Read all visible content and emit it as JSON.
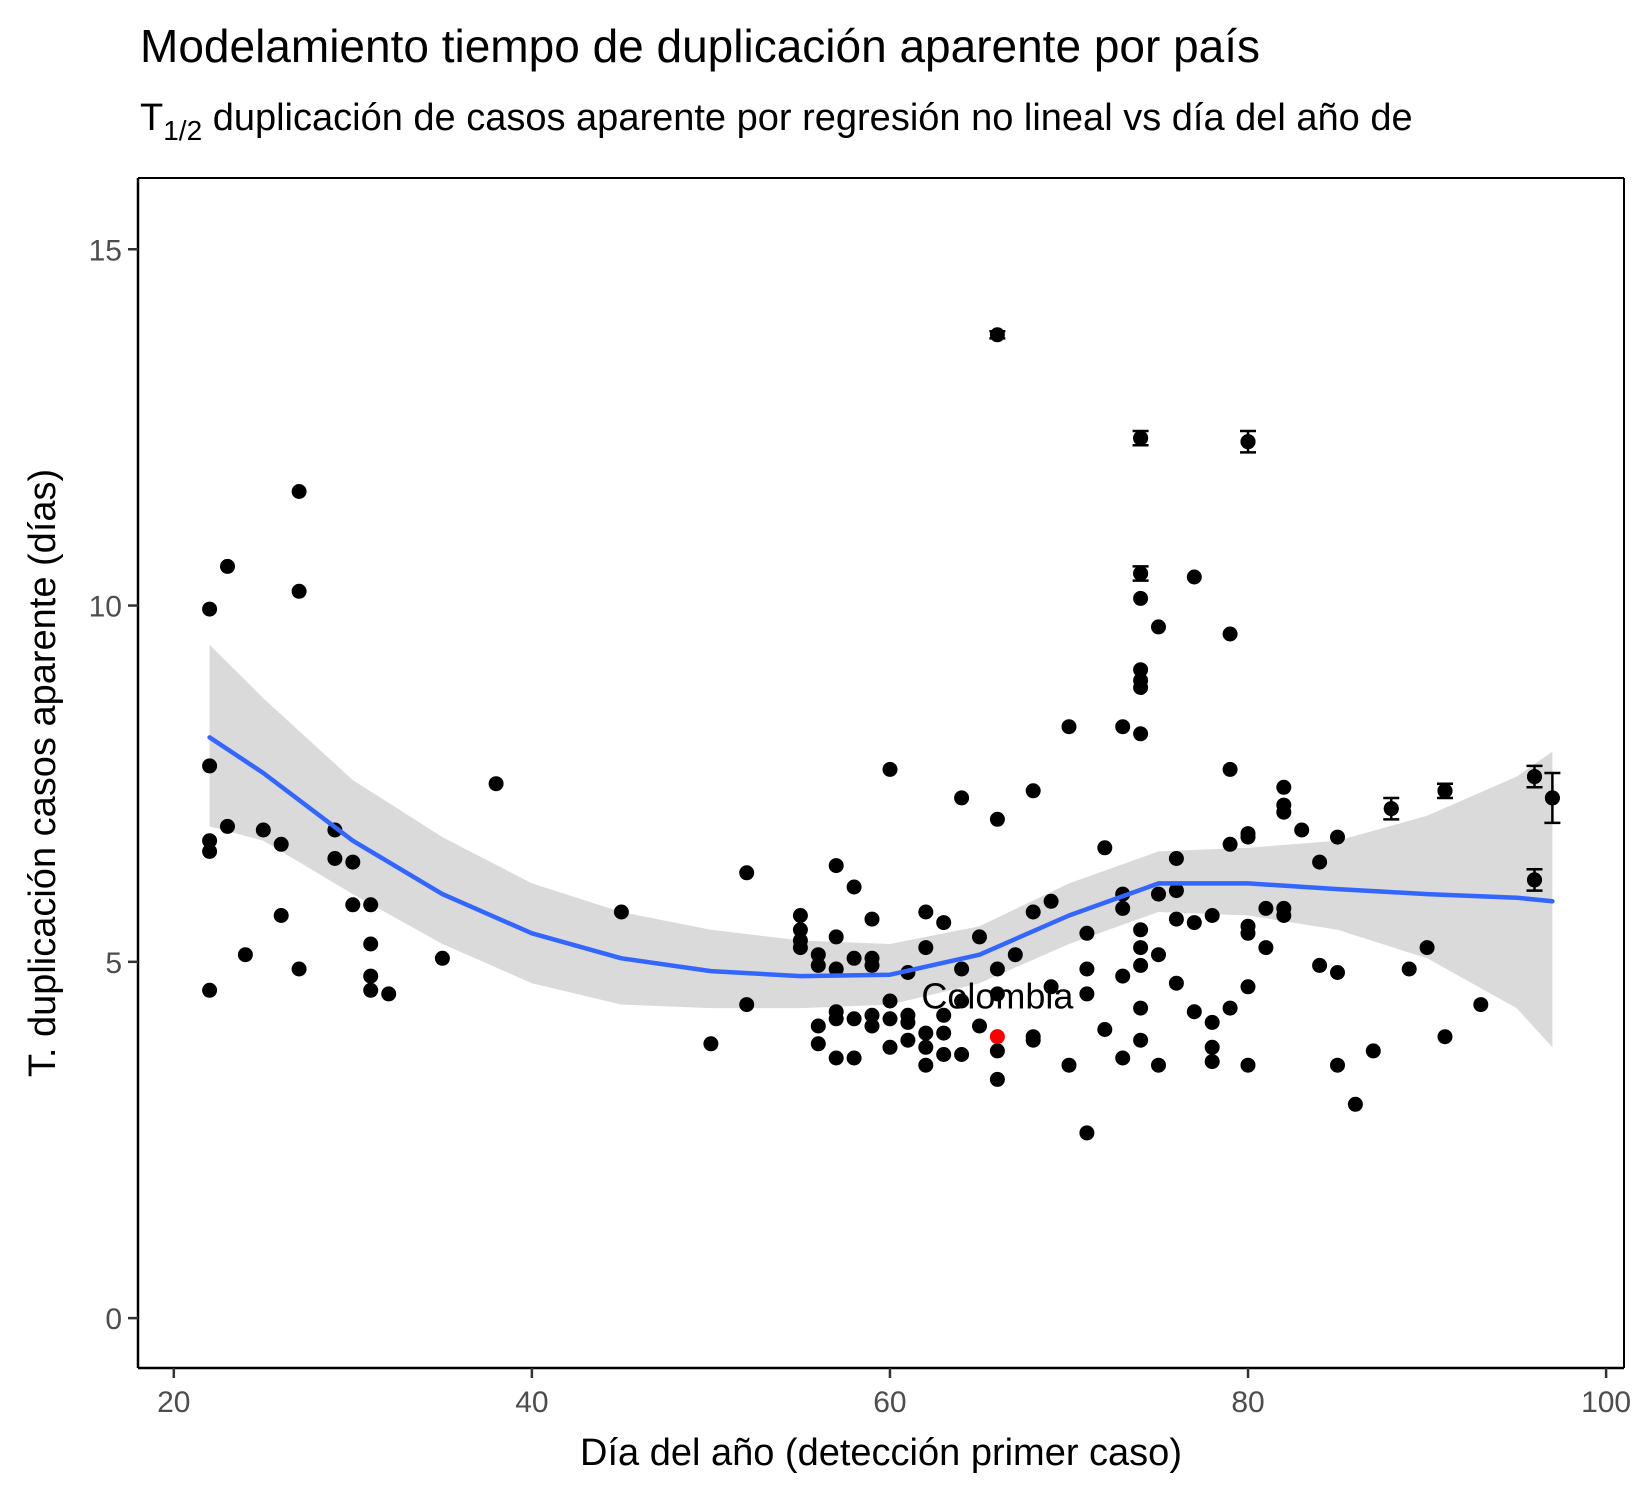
{
  "chart_data": {
    "type": "scatter",
    "title": "Modelamiento tiempo de duplicación aparente por país",
    "subtitle": {
      "prefix": "T",
      "sub": "1/2",
      "rest": " duplicación de casos aparente por regresión no lineal vs día del año de"
    },
    "xlabel": "Día del año (detección primer caso)",
    "ylabel": "T. duplicación casos aparente (días)",
    "xlim": [
      18,
      101
    ],
    "ylim": [
      -0.7,
      16.0
    ],
    "x_ticks": [
      20,
      40,
      60,
      80,
      100
    ],
    "y_ticks": [
      0,
      5,
      10,
      15
    ],
    "grid": false,
    "colors": {
      "points": "#000000",
      "highlight": "#ff0000",
      "smooth_line": "#3366ff",
      "ribbon": "#d3d3d3"
    },
    "series": [
      {
        "points": [
          [
            22,
            9.95
          ],
          [
            22,
            7.75
          ],
          [
            22,
            6.7
          ],
          [
            22,
            6.55
          ],
          [
            22,
            4.6
          ],
          [
            23,
            10.55
          ],
          [
            23,
            6.9
          ],
          [
            24,
            5.1
          ],
          [
            25,
            6.85
          ],
          [
            26,
            6.65
          ],
          [
            26,
            5.65
          ],
          [
            27,
            11.6
          ],
          [
            27,
            10.2
          ],
          [
            27,
            4.9
          ],
          [
            29,
            6.85
          ],
          [
            29,
            6.45
          ],
          [
            30,
            6.4
          ],
          [
            30,
            5.8
          ],
          [
            31,
            5.8
          ],
          [
            31,
            5.25
          ],
          [
            31,
            4.8
          ],
          [
            31,
            4.6
          ],
          [
            32,
            4.55
          ],
          [
            35,
            5.05
          ],
          [
            38,
            7.5
          ],
          [
            45,
            5.7
          ],
          [
            50,
            3.85
          ],
          [
            52,
            6.25
          ],
          [
            52,
            4.4
          ],
          [
            55,
            5.65
          ],
          [
            55,
            5.45
          ],
          [
            55,
            5.3
          ],
          [
            55,
            5.2
          ],
          [
            56,
            5.1
          ],
          [
            56,
            4.95
          ],
          [
            56,
            4.1
          ],
          [
            56,
            3.85
          ],
          [
            57,
            6.35
          ],
          [
            57,
            5.35
          ],
          [
            57,
            4.9
          ],
          [
            57,
            4.3
          ],
          [
            57,
            4.2
          ],
          [
            57,
            3.65
          ],
          [
            58,
            6.05
          ],
          [
            58,
            5.05
          ],
          [
            58,
            4.2
          ],
          [
            58,
            3.65
          ],
          [
            59,
            5.6
          ],
          [
            59,
            5.05
          ],
          [
            59,
            4.95
          ],
          [
            59,
            4.25
          ],
          [
            59,
            4.1
          ],
          [
            60,
            7.7
          ],
          [
            60,
            4.45
          ],
          [
            60,
            4.2
          ],
          [
            60,
            3.8
          ],
          [
            61,
            4.85
          ],
          [
            61,
            4.25
          ],
          [
            61,
            4.15
          ],
          [
            61,
            3.9
          ],
          [
            62,
            5.7
          ],
          [
            62,
            5.2
          ],
          [
            62,
            4.0
          ],
          [
            62,
            3.8
          ],
          [
            62,
            3.55
          ],
          [
            63,
            5.55
          ],
          [
            63,
            4.25
          ],
          [
            63,
            4.0
          ],
          [
            63,
            3.7
          ],
          [
            64,
            7.3
          ],
          [
            64,
            4.9
          ],
          [
            64,
            4.45
          ],
          [
            64,
            3.7
          ],
          [
            65,
            5.35
          ],
          [
            65,
            4.1
          ],
          [
            66,
            7.0
          ],
          [
            66,
            4.9
          ],
          [
            66,
            4.55
          ],
          [
            66,
            3.75
          ],
          [
            66,
            3.35
          ],
          [
            67,
            5.1
          ],
          [
            68,
            7.4
          ],
          [
            68,
            5.7
          ],
          [
            68,
            3.95
          ],
          [
            68,
            3.9
          ],
          [
            69,
            5.85
          ],
          [
            69,
            4.65
          ],
          [
            70,
            8.3
          ],
          [
            70,
            3.55
          ],
          [
            71,
            5.4
          ],
          [
            71,
            4.9
          ],
          [
            71,
            4.55
          ],
          [
            71,
            2.6
          ],
          [
            72,
            6.6
          ],
          [
            72,
            4.05
          ],
          [
            73,
            8.3
          ],
          [
            73,
            5.95
          ],
          [
            73,
            5.75
          ],
          [
            73,
            4.8
          ],
          [
            73,
            3.65
          ],
          [
            74,
            12.35
          ],
          [
            74,
            10.45
          ],
          [
            74,
            10.1
          ],
          [
            74,
            9.1
          ],
          [
            74,
            8.95
          ],
          [
            74,
            8.85
          ],
          [
            74,
            8.2
          ],
          [
            74,
            5.45
          ],
          [
            74,
            5.2
          ],
          [
            74,
            4.95
          ],
          [
            74,
            4.35
          ],
          [
            74,
            3.9
          ],
          [
            75,
            9.7
          ],
          [
            75,
            5.95
          ],
          [
            75,
            5.1
          ],
          [
            75,
            3.55
          ],
          [
            76,
            6.45
          ],
          [
            76,
            6.0
          ],
          [
            76,
            5.6
          ],
          [
            76,
            4.7
          ],
          [
            77,
            10.4
          ],
          [
            77,
            5.55
          ],
          [
            77,
            4.3
          ],
          [
            78,
            5.65
          ],
          [
            78,
            4.15
          ],
          [
            78,
            3.8
          ],
          [
            78,
            3.6
          ],
          [
            79,
            9.6
          ],
          [
            79,
            7.7
          ],
          [
            79,
            6.65
          ],
          [
            79,
            4.35
          ],
          [
            80,
            12.3
          ],
          [
            80,
            6.8
          ],
          [
            80,
            6.75
          ],
          [
            80,
            5.5
          ],
          [
            80,
            5.4
          ],
          [
            80,
            4.65
          ],
          [
            80,
            3.55
          ],
          [
            81,
            5.75
          ],
          [
            81,
            5.2
          ],
          [
            82,
            7.45
          ],
          [
            82,
            7.2
          ],
          [
            82,
            7.1
          ],
          [
            82,
            5.75
          ],
          [
            82,
            5.65
          ],
          [
            83,
            6.85
          ],
          [
            84,
            6.4
          ],
          [
            84,
            4.95
          ],
          [
            85,
            6.75
          ],
          [
            85,
            4.85
          ],
          [
            85,
            3.55
          ],
          [
            86,
            3.0
          ],
          [
            87,
            3.75
          ],
          [
            88,
            7.15
          ],
          [
            89,
            4.9
          ],
          [
            90,
            5.2
          ],
          [
            91,
            7.4
          ],
          [
            91,
            3.95
          ],
          [
            93,
            4.4
          ],
          [
            96,
            7.6
          ],
          [
            96,
            6.15
          ],
          [
            97,
            7.3
          ]
        ]
      }
    ],
    "highlight": {
      "label": "Colombia",
      "x": 66,
      "y": 3.95
    },
    "error_bars": [
      {
        "x": 66,
        "y": 13.8,
        "lo": 13.75,
        "hi": 13.85
      },
      {
        "x": 74,
        "y": 12.35,
        "lo": 12.25,
        "hi": 12.45
      },
      {
        "x": 74,
        "y": 10.45,
        "lo": 10.35,
        "hi": 10.55
      },
      {
        "x": 80,
        "y": 12.3,
        "lo": 12.15,
        "hi": 12.45
      },
      {
        "x": 88,
        "y": 7.15,
        "lo": 7.0,
        "hi": 7.3
      },
      {
        "x": 91,
        "y": 7.4,
        "lo": 7.3,
        "hi": 7.5
      },
      {
        "x": 96,
        "y": 7.6,
        "lo": 7.45,
        "hi": 7.75
      },
      {
        "x": 96,
        "y": 6.15,
        "lo": 6.0,
        "hi": 6.3
      },
      {
        "x": 97,
        "y": 7.3,
        "lo": 6.95,
        "hi": 7.65
      }
    ],
    "smooth": [
      {
        "x": 22,
        "y": 8.15,
        "lo": 6.9,
        "hi": 9.45
      },
      {
        "x": 25,
        "y": 7.65,
        "lo": 6.7,
        "hi": 8.7
      },
      {
        "x": 30,
        "y": 6.7,
        "lo": 5.95,
        "hi": 7.55
      },
      {
        "x": 35,
        "y": 5.95,
        "lo": 5.25,
        "hi": 6.75
      },
      {
        "x": 40,
        "y": 5.4,
        "lo": 4.7,
        "hi": 6.1
      },
      {
        "x": 45,
        "y": 5.05,
        "lo": 4.4,
        "hi": 5.7
      },
      {
        "x": 50,
        "y": 4.87,
        "lo": 4.35,
        "hi": 5.45
      },
      {
        "x": 55,
        "y": 4.8,
        "lo": 4.35,
        "hi": 5.3
      },
      {
        "x": 60,
        "y": 4.82,
        "lo": 4.4,
        "hi": 5.25
      },
      {
        "x": 65,
        "y": 5.1,
        "lo": 4.7,
        "hi": 5.5
      },
      {
        "x": 70,
        "y": 5.65,
        "lo": 5.25,
        "hi": 6.1
      },
      {
        "x": 75,
        "y": 6.1,
        "lo": 5.7,
        "hi": 6.55
      },
      {
        "x": 80,
        "y": 6.1,
        "lo": 5.65,
        "hi": 6.6
      },
      {
        "x": 85,
        "y": 6.02,
        "lo": 5.45,
        "hi": 6.7
      },
      {
        "x": 90,
        "y": 5.95,
        "lo": 5.05,
        "hi": 7.05
      },
      {
        "x": 95,
        "y": 5.9,
        "lo": 4.35,
        "hi": 7.6
      },
      {
        "x": 97,
        "y": 5.85,
        "lo": 3.8,
        "hi": 7.95
      }
    ]
  }
}
